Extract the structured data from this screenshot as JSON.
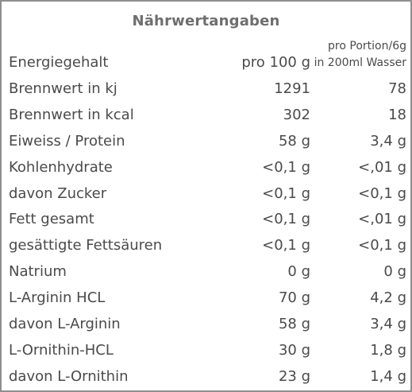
{
  "title": "Nährwertangaben",
  "header": {
    "label": "Energiegehalt",
    "col1": "pro 100 g",
    "col2_line1": "pro Portion/6g",
    "col2_line2": "in 200ml Wasser"
  },
  "rows": [
    {
      "label": "Brennwert in kj",
      "per100": "1291",
      "portion": "78"
    },
    {
      "label": "Brennwert in kcal",
      "per100": "302",
      "portion": "18"
    },
    {
      "label": "Eiweiss / Protein",
      "per100": "58 g",
      "portion": "3,4 g"
    },
    {
      "label": "Kohlenhydrate",
      "per100": "<0,1 g",
      "portion": "<,01 g"
    },
    {
      "label": "davon Zucker",
      "per100": "<0,1 g",
      "portion": "<0,1 g"
    },
    {
      "label": "Fett gesamt",
      "per100": "<0,1 g",
      "portion": "<,01 g"
    },
    {
      "label": "gesättigte Fettsäuren",
      "per100": "<0,1 g",
      "portion": "<0,1 g"
    },
    {
      "label": "Natrium",
      "per100": "0 g",
      "portion": "0 g"
    },
    {
      "label": "L-Arginin HCL",
      "per100": "70 g",
      "portion": "4,2 g"
    },
    {
      "label": "davon L-Arginin",
      "per100": "58 g",
      "portion": "3,4 g"
    },
    {
      "label": "L-Ornithin-HCL",
      "per100": "30 g",
      "portion": "1,8 g"
    },
    {
      "label": "davon L-Ornithin",
      "per100": "23 g",
      "portion": "1,4 g"
    }
  ]
}
